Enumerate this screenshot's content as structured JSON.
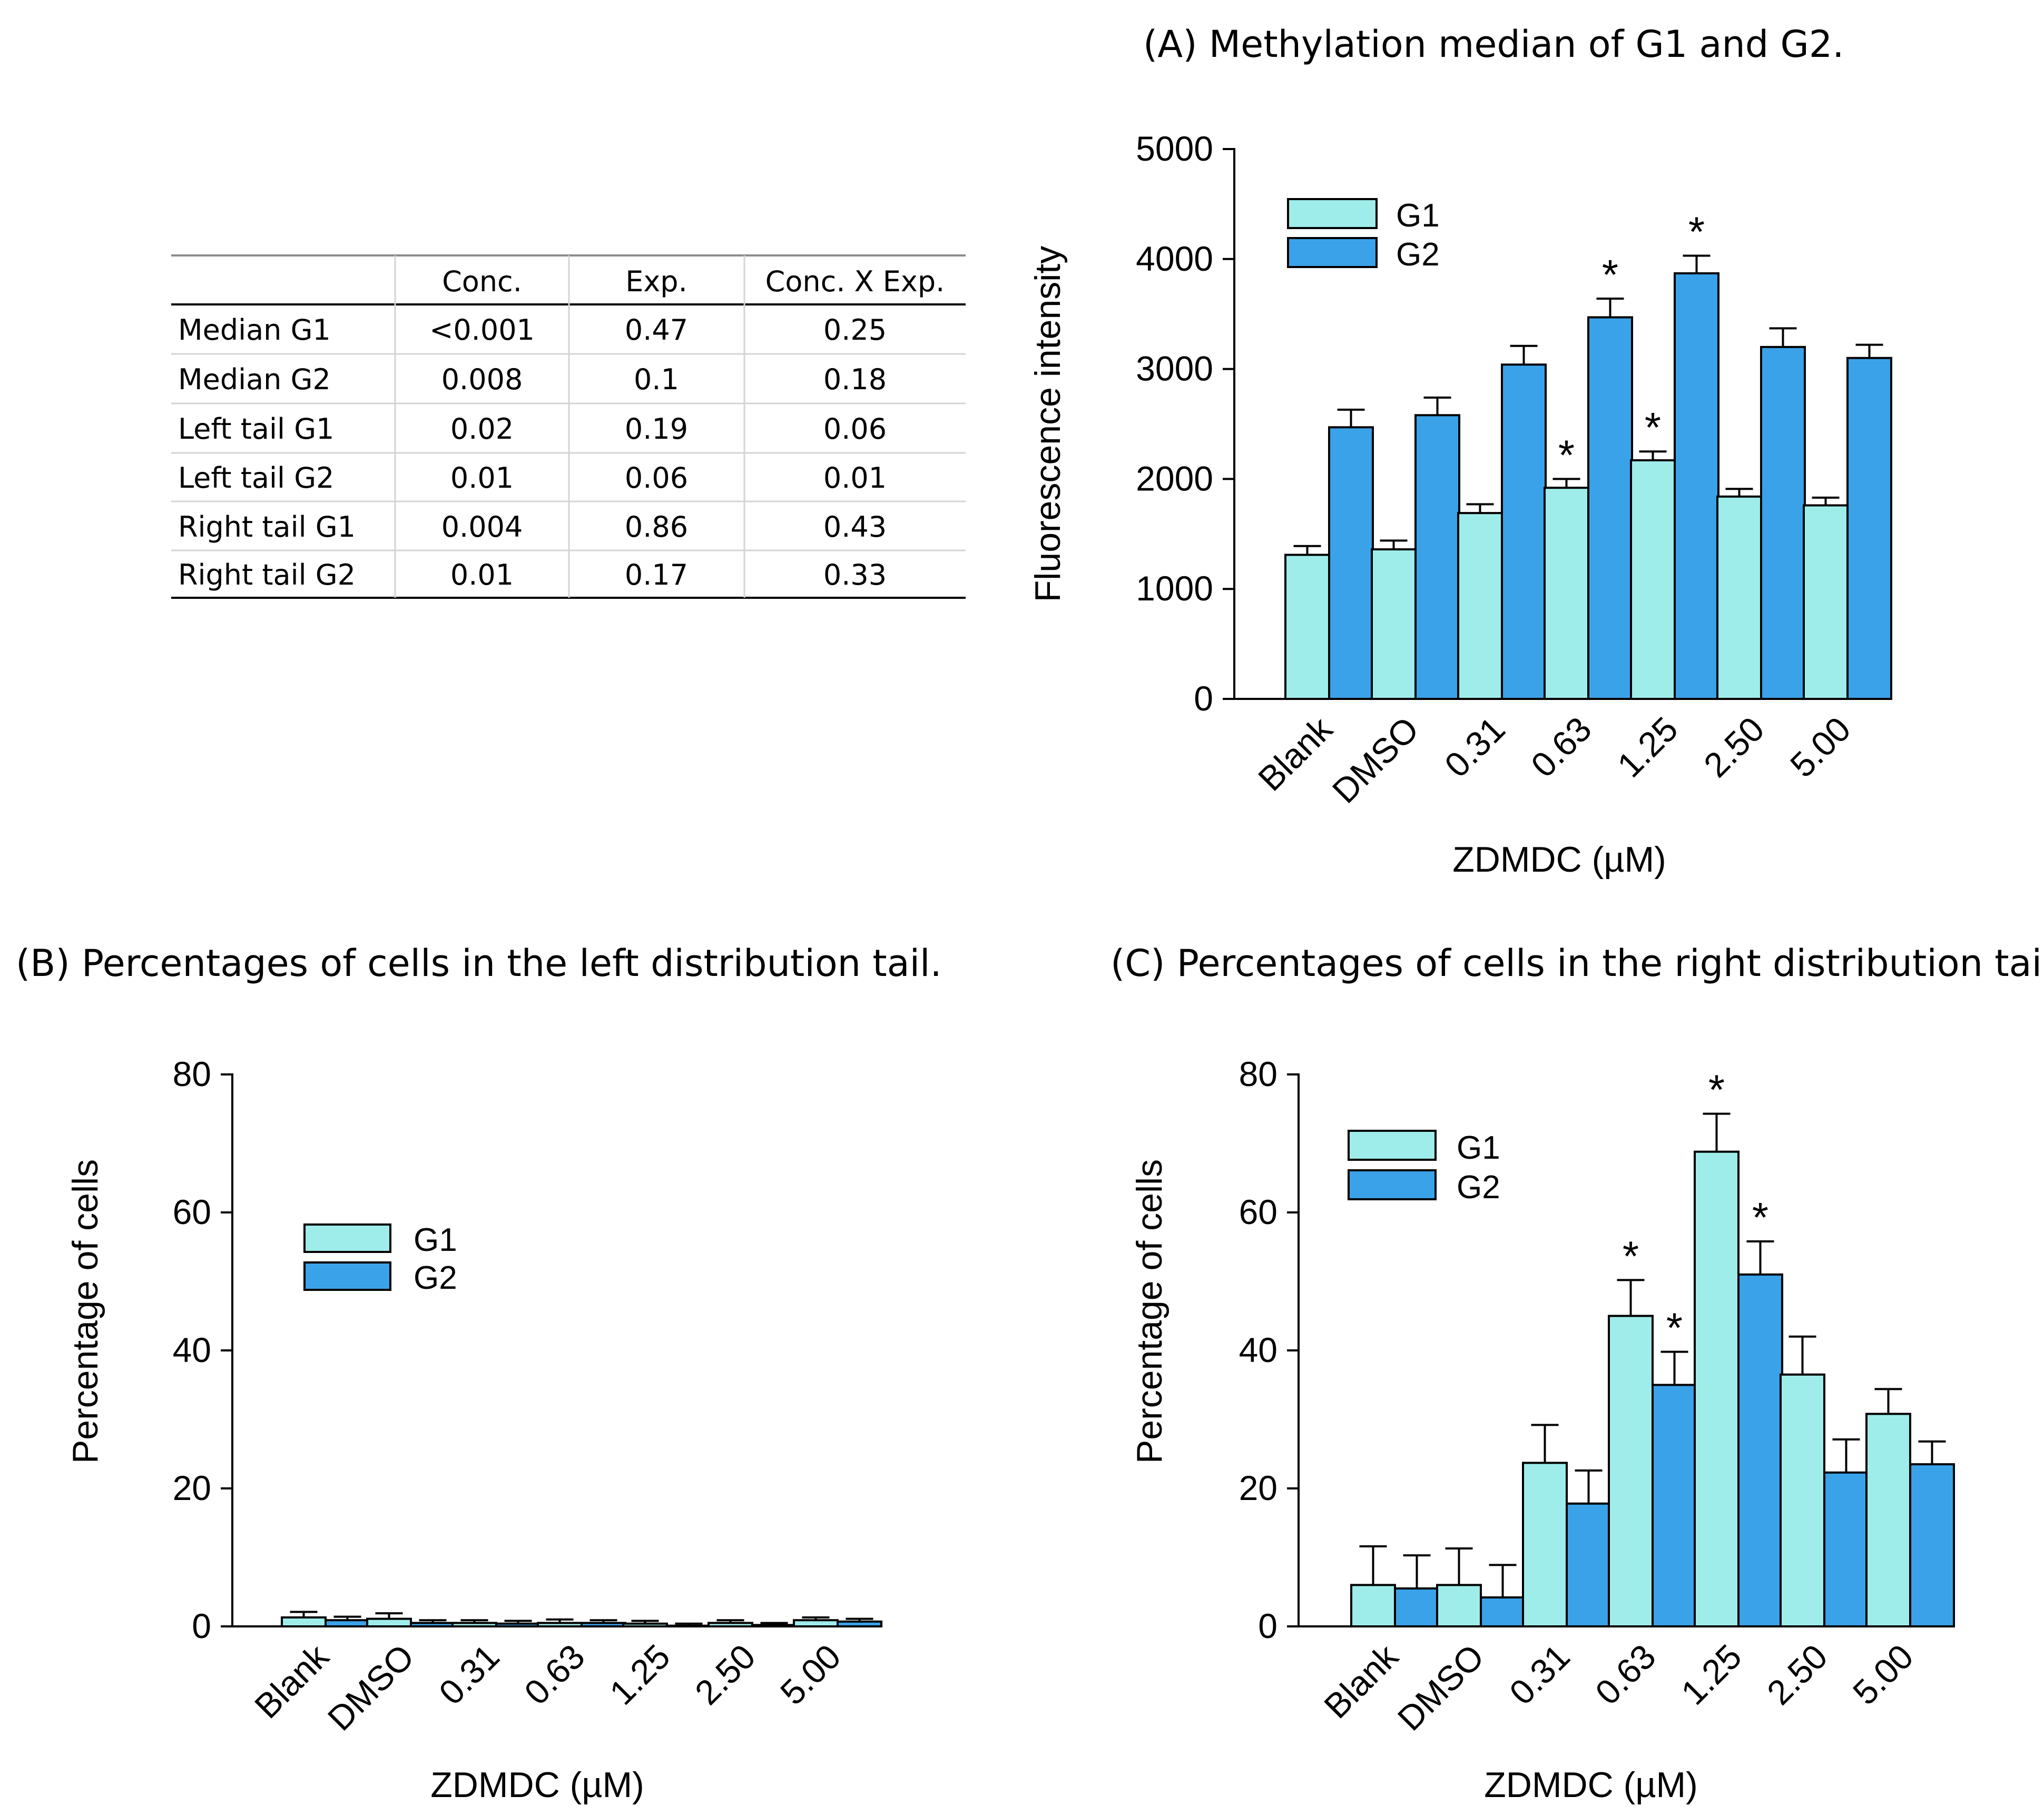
{
  "colors": {
    "g1": "#9EEDEA",
    "g2": "#3AA2E8",
    "outline": "#000000"
  },
  "table": {
    "headers": [
      "",
      "Conc.",
      "Exp.",
      "Conc. X Exp."
    ],
    "rows": [
      [
        "Median G1",
        "<0.001",
        "0.47",
        "0.25"
      ],
      [
        "Median G2",
        "0.008",
        "0.1",
        "0.18"
      ],
      [
        "Left tail G1",
        "0.02",
        "0.19",
        "0.06"
      ],
      [
        "Left tail G2",
        "0.01",
        "0.06",
        "0.01"
      ],
      [
        "Right tail G1",
        "0.004",
        "0.86",
        "0.43"
      ],
      [
        "Right tail G2",
        "0.01",
        "0.17",
        "0.33"
      ]
    ]
  },
  "chart_data": [
    {
      "id": "A",
      "type": "bar",
      "title": "(A) Methylation median of G1 and G2.",
      "xlabel": "ZDMDC (µM)",
      "ylabel": "Fluorescence intensity",
      "ylim": [
        0,
        5000
      ],
      "yticks": [
        0,
        1000,
        2000,
        3000,
        4000,
        5000
      ],
      "categories": [
        "Blank",
        "DMSO",
        "0.31",
        "0.63",
        "1.25",
        "2.50",
        "5.00"
      ],
      "legend": "top-left",
      "series": [
        {
          "name": "G1",
          "values": [
            1310,
            1360,
            1690,
            1920,
            2170,
            1840,
            1760
          ],
          "errors": [
            80,
            80,
            80,
            80,
            80,
            70,
            70
          ],
          "stars": [
            false,
            false,
            false,
            true,
            true,
            false,
            false
          ]
        },
        {
          "name": "G2",
          "values": [
            2470,
            2580,
            3040,
            3470,
            3870,
            3200,
            3100
          ],
          "errors": [
            160,
            160,
            170,
            170,
            160,
            170,
            120
          ],
          "stars": [
            false,
            false,
            false,
            true,
            true,
            false,
            false
          ]
        }
      ]
    },
    {
      "id": "B",
      "type": "bar",
      "title": "(B) Percentages of cells in the left distribution tail.",
      "xlabel": "ZDMDC (µM)",
      "ylabel": "Percentage of cells",
      "ylim": [
        0,
        80
      ],
      "yticks": [
        0,
        20,
        40,
        60,
        80
      ],
      "categories": [
        "Blank",
        "DMSO",
        "0.31",
        "0.63",
        "1.25",
        "2.50",
        "5.00"
      ],
      "legend": "top-left",
      "series": [
        {
          "name": "G1",
          "values": [
            1.3,
            1.1,
            0.5,
            0.5,
            0.4,
            0.5,
            0.9
          ],
          "errors": [
            0.8,
            0.8,
            0.4,
            0.5,
            0.4,
            0.4,
            0.4
          ],
          "stars": [
            false,
            false,
            false,
            false,
            false,
            false,
            false
          ]
        },
        {
          "name": "G2",
          "values": [
            0.9,
            0.5,
            0.4,
            0.5,
            0.1,
            0.2,
            0.7
          ],
          "errors": [
            0.5,
            0.4,
            0.4,
            0.4,
            0.3,
            0.3,
            0.4
          ],
          "stars": [
            false,
            false,
            false,
            false,
            false,
            false,
            false
          ]
        }
      ]
    },
    {
      "id": "C",
      "type": "bar",
      "title": "(C) Percentages of cells in the right distribution tail.",
      "xlabel": "ZDMDC (µM)",
      "ylabel": "Percentage of cells",
      "ylim": [
        0,
        80
      ],
      "yticks": [
        0,
        20,
        40,
        60,
        80
      ],
      "categories": [
        "Blank",
        "DMSO",
        "0.31",
        "0.63",
        "1.25",
        "2.50",
        "5.00"
      ],
      "legend": "top-left",
      "series": [
        {
          "name": "G1",
          "values": [
            6,
            6,
            23.7,
            45,
            68.8,
            36.5,
            30.8
          ],
          "errors": [
            5.6,
            5.3,
            5.5,
            5.2,
            5.5,
            5.5,
            3.6
          ],
          "stars": [
            false,
            false,
            false,
            true,
            true,
            false,
            false
          ]
        },
        {
          "name": "G2",
          "values": [
            5.5,
            4.2,
            17.8,
            35,
            51,
            22.3,
            23.5
          ],
          "errors": [
            4.8,
            4.7,
            4.8,
            4.8,
            4.8,
            4.8,
            3.3
          ],
          "stars": [
            false,
            false,
            false,
            true,
            true,
            false,
            false
          ]
        }
      ]
    }
  ]
}
